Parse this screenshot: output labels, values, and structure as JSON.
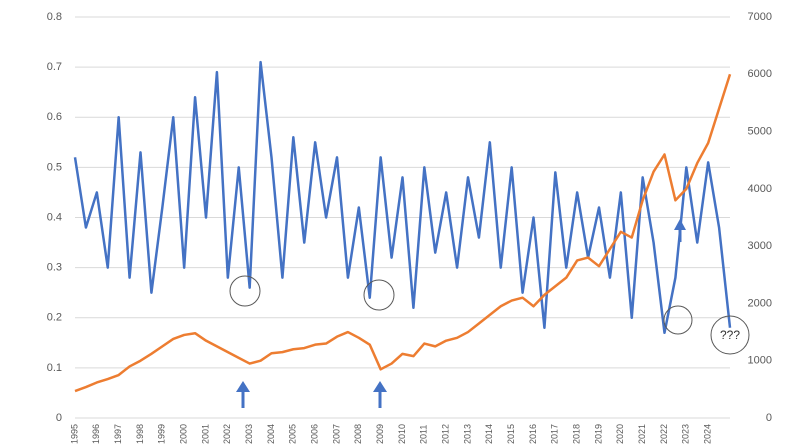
{
  "chart_data": {
    "type": "line",
    "x": [
      1995,
      1995.5,
      1996,
      1996.5,
      1997,
      1997.5,
      1998,
      1998.5,
      1999,
      1999.5,
      2000,
      2000.5,
      2001,
      2001.5,
      2002,
      2002.5,
      2003,
      2003.5,
      2004,
      2004.5,
      2005,
      2005.5,
      2006,
      2006.5,
      2007,
      2007.5,
      2008,
      2008.5,
      2009,
      2009.5,
      2010,
      2010.5,
      2011,
      2011.5,
      2012,
      2012.5,
      2013,
      2013.5,
      2014,
      2014.5,
      2015,
      2015.5,
      2016,
      2016.5,
      2017,
      2017.5,
      2018,
      2018.5,
      2019,
      2019.5,
      2020,
      2020.5,
      2021,
      2021.5,
      2022,
      2022.5,
      2023,
      2023.5,
      2024,
      2024.5,
      2025
    ],
    "series": [
      {
        "color": "#4472c4",
        "axis": "y",
        "values": [
          0.52,
          0.38,
          0.45,
          0.3,
          0.6,
          0.28,
          0.53,
          0.25,
          0.42,
          0.6,
          0.3,
          0.64,
          0.4,
          0.69,
          0.28,
          0.5,
          0.26,
          0.71,
          0.52,
          0.28,
          0.56,
          0.35,
          0.55,
          0.4,
          0.52,
          0.28,
          0.42,
          0.24,
          0.52,
          0.32,
          0.48,
          0.22,
          0.5,
          0.33,
          0.45,
          0.3,
          0.48,
          0.36,
          0.55,
          0.3,
          0.5,
          0.25,
          0.4,
          0.18,
          0.49,
          0.3,
          0.45,
          0.32,
          0.42,
          0.28,
          0.45,
          0.2,
          0.48,
          0.35,
          0.17,
          0.28,
          0.5,
          0.35,
          0.51,
          0.38,
          0.18
        ]
      },
      {
        "color": "#ed7d31",
        "axis": "y2",
        "values": [
          470,
          540,
          620,
          680,
          750,
          900,
          1000,
          1120,
          1250,
          1380,
          1450,
          1480,
          1350,
          1250,
          1150,
          1050,
          950,
          1000,
          1130,
          1150,
          1200,
          1220,
          1280,
          1300,
          1420,
          1500,
          1400,
          1280,
          850,
          950,
          1120,
          1080,
          1300,
          1250,
          1350,
          1400,
          1500,
          1650,
          1800,
          1950,
          2050,
          2100,
          1950,
          2150,
          2300,
          2450,
          2750,
          2800,
          2650,
          2950,
          3250,
          3150,
          3800,
          4300,
          4600,
          3800,
          4000,
          4450,
          4800,
          5400,
          6000
        ]
      }
    ],
    "xlim": [
      1995,
      2025
    ],
    "xticks": [
      1995,
      1996,
      1997,
      1998,
      1999,
      2000,
      2001,
      2002,
      2003,
      2004,
      2005,
      2006,
      2007,
      2008,
      2009,
      2010,
      2011,
      2012,
      2013,
      2014,
      2015,
      2016,
      2017,
      2018,
      2019,
      2020,
      2021,
      2022,
      2023,
      2024
    ],
    "ylim": [
      0,
      0.8
    ],
    "yticks": [
      0,
      0.1,
      0.2,
      0.3,
      0.4,
      0.5,
      0.6,
      0.7,
      0.8
    ],
    "y2lim": [
      0,
      7000
    ],
    "y2ticks": [
      0,
      1000,
      2000,
      3000,
      4000,
      5000,
      6000,
      7000
    ],
    "grid": true,
    "annotation": "???"
  }
}
